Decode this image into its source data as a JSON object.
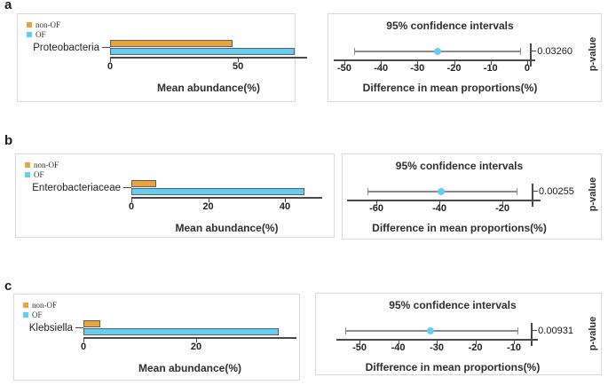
{
  "figure_title": "",
  "colors": {
    "non_of": "#E9A43D",
    "of": "#63CDF2",
    "axis": "#4a4a4a",
    "ci_line": "#8c8c8c",
    "box_border": "#d9d9d9",
    "text": "#2e2e2e"
  },
  "legend": {
    "items": [
      {
        "label": "non-OF",
        "color": "#E9A43D"
      },
      {
        "label": "OF",
        "color": "#63CDF2"
      }
    ]
  },
  "chart_data": [
    {
      "panel": "a",
      "feature": "Proteobacteria",
      "bar": {
        "type": "bar",
        "xlabel": "Mean abundance(%)",
        "ticks": [
          0,
          50
        ],
        "axis_max": 77,
        "series": [
          {
            "name": "non-OF",
            "value": 48
          },
          {
            "name": "OF",
            "value": 72
          }
        ]
      },
      "ci": {
        "type": "ci",
        "title": "95% confidence intervals",
        "xlabel": "Difference in mean proportions(%)",
        "ylabel": "p-value",
        "ticks": [
          -50,
          -40,
          -30,
          -20,
          -10,
          0
        ],
        "axis_range": [
          -52.9,
          2.2
        ],
        "ci_low": -47.3,
        "ci_high": -2.0,
        "mean": -24.6,
        "spine_value": 0.8,
        "p_value": "0.03260"
      }
    },
    {
      "panel": "b",
      "feature": "Enterobacteriaceae",
      "bar": {
        "type": "bar",
        "xlabel": "Mean abundance(%)",
        "ticks": [
          0,
          20,
          40
        ],
        "axis_max": 49.7,
        "series": [
          {
            "name": "non-OF",
            "value": 6.5
          },
          {
            "name": "OF",
            "value": 45
          }
        ]
      },
      "ci": {
        "type": "ci",
        "title": "95% confidence intervals",
        "xlabel": "Difference in mean proportions(%)",
        "ylabel": "p-value",
        "ticks": [
          -60,
          -40,
          -20
        ],
        "axis_range": [
          -69.3,
          -7.9
        ],
        "ci_low": -62.8,
        "ci_high": -15.5,
        "mean": -39.5,
        "spine_value": -10.7,
        "p_value": "0.00255"
      }
    },
    {
      "panel": "c",
      "feature": "Klebsiella",
      "bar": {
        "type": "bar",
        "xlabel": "Mean abundance(%)",
        "ticks": [
          0,
          20
        ],
        "axis_max": 37.8,
        "series": [
          {
            "name": "non-OF",
            "value": 3
          },
          {
            "name": "OF",
            "value": 34.6
          }
        ]
      },
      "ci": {
        "type": "ci",
        "title": "95% confidence intervals",
        "xlabel": "Difference in mean proportions(%)",
        "ylabel": "p-value",
        "ticks": [
          -50,
          -40,
          -30,
          -20,
          -10
        ],
        "axis_range": [
          -56.0,
          -3.8
        ],
        "ci_low": -53.7,
        "ci_high": -9.0,
        "mean": -31.6,
        "spine_value": -5.6,
        "p_value": "0.00931"
      }
    }
  ]
}
